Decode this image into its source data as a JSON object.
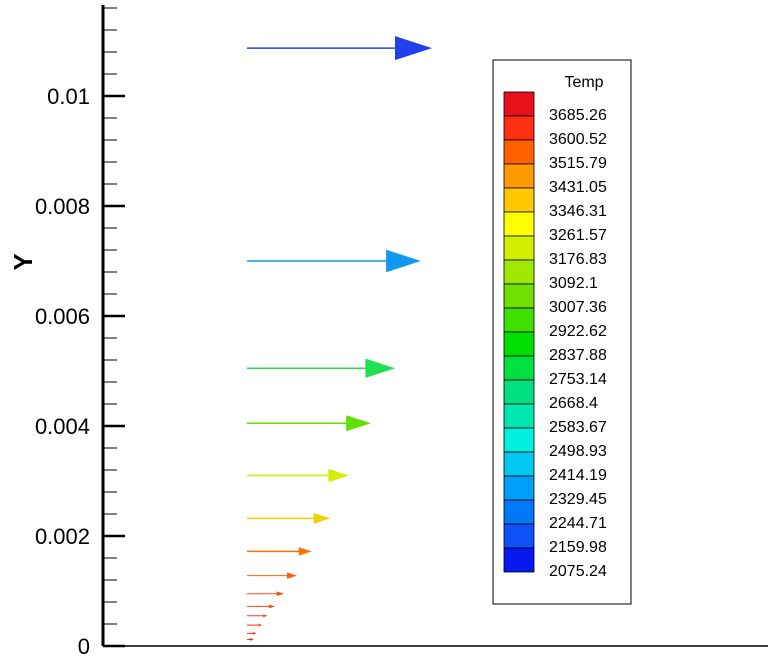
{
  "chart_data": {
    "type": "vector",
    "ylabel": "Y",
    "ylim": [
      0,
      0.0118
    ],
    "yticks": [
      0,
      0.002,
      0.004,
      0.006,
      0.008,
      0.01
    ],
    "ytick_labels": [
      "0",
      "0.002",
      "0.004",
      "0.006",
      "0.008",
      "0.01"
    ],
    "legend": {
      "title": "Temp",
      "levels": [
        "3685.26",
        "3600.52",
        "3515.79",
        "3431.05",
        "3346.31",
        "3261.57",
        "3176.83",
        "3092.1",
        "3007.36",
        "2922.62",
        "2837.88",
        "2753.14",
        "2668.4",
        "2583.67",
        "2498.93",
        "2414.19",
        "2329.45",
        "2244.71",
        "2159.98",
        "2075.24"
      ],
      "colors": [
        "#e8101a",
        "#ff3010",
        "#ff6000",
        "#ff9a00",
        "#ffc800",
        "#ffff00",
        "#d0f000",
        "#a0e800",
        "#70e000",
        "#40e000",
        "#00e000",
        "#00e040",
        "#00e080",
        "#00e8b0",
        "#00f0e0",
        "#00c8f0",
        "#00a0f8",
        "#0078f8",
        "#1050f8",
        "#0818f0"
      ]
    },
    "arrows": [
      {
        "y": 0.01087,
        "magnitude": 1.0,
        "color": "#2040f0"
      },
      {
        "y": 0.007,
        "magnitude": 0.94,
        "color": "#1098f0"
      },
      {
        "y": 0.00505,
        "magnitude": 0.8,
        "color": "#20e050"
      },
      {
        "y": 0.00405,
        "magnitude": 0.67,
        "color": "#60e000"
      },
      {
        "y": 0.0031,
        "magnitude": 0.55,
        "color": "#d0f000"
      },
      {
        "y": 0.00232,
        "magnitude": 0.45,
        "color": "#f0d000"
      },
      {
        "y": 0.00172,
        "magnitude": 0.35,
        "color": "#ff7000"
      },
      {
        "y": 0.00128,
        "magnitude": 0.27,
        "color": "#ff6000"
      },
      {
        "y": 0.00095,
        "magnitude": 0.2,
        "color": "#ff5010"
      },
      {
        "y": 0.00072,
        "magnitude": 0.15,
        "color": "#ff4010"
      },
      {
        "y": 0.00055,
        "magnitude": 0.11,
        "color": "#ff4010"
      },
      {
        "y": 0.00038,
        "magnitude": 0.08,
        "color": "#ff3010"
      },
      {
        "y": 0.00023,
        "magnitude": 0.05,
        "color": "#ff3010"
      },
      {
        "y": 0.00012,
        "magnitude": 0.035,
        "color": "#f02010"
      }
    ]
  }
}
